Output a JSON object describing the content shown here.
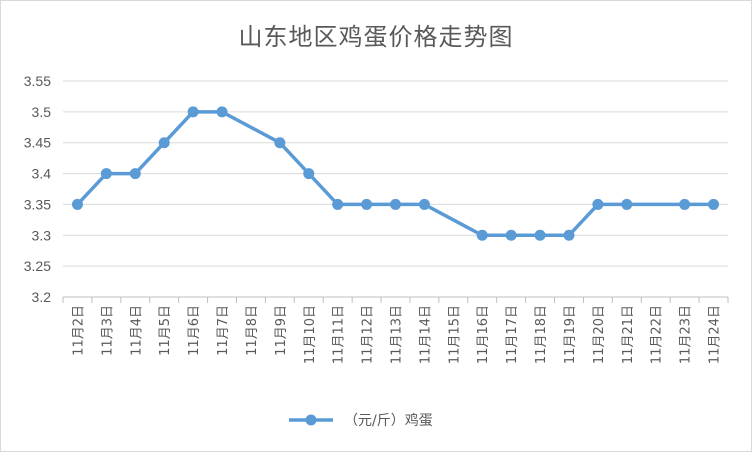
{
  "chart_data": {
    "type": "line",
    "title": "山东地区鸡蛋价格走势图",
    "categories": [
      "11月2日",
      "11月3日",
      "11月4日",
      "11月5日",
      "11月6日",
      "11月7日",
      "11月8日",
      "11月9日",
      "11月10日",
      "11月11日",
      "11月12日",
      "11月13日",
      "11月14日",
      "11月15日",
      "11月16日",
      "11月17日",
      "11月18日",
      "11月19日",
      "11月20日",
      "11月21日",
      "11月22日",
      "11月23日",
      "11月24日"
    ],
    "series": [
      {
        "name": "（元/斤）鸡蛋",
        "color": "#5b9bd5",
        "values": [
          3.35,
          3.4,
          3.4,
          3.45,
          3.5,
          3.5,
          null,
          3.45,
          3.4,
          3.35,
          3.35,
          3.35,
          3.35,
          null,
          3.3,
          3.3,
          3.3,
          3.3,
          3.35,
          3.35,
          null,
          3.35,
          3.35
        ]
      }
    ],
    "yticks": [
      "3.2",
      "3.25",
      "3.3",
      "3.35",
      "3.4",
      "3.45",
      "3.5",
      "3.55"
    ],
    "ylim": [
      3.2,
      3.55
    ],
    "xlabel": "",
    "ylabel": "",
    "grid": true,
    "legend": "bottom"
  }
}
